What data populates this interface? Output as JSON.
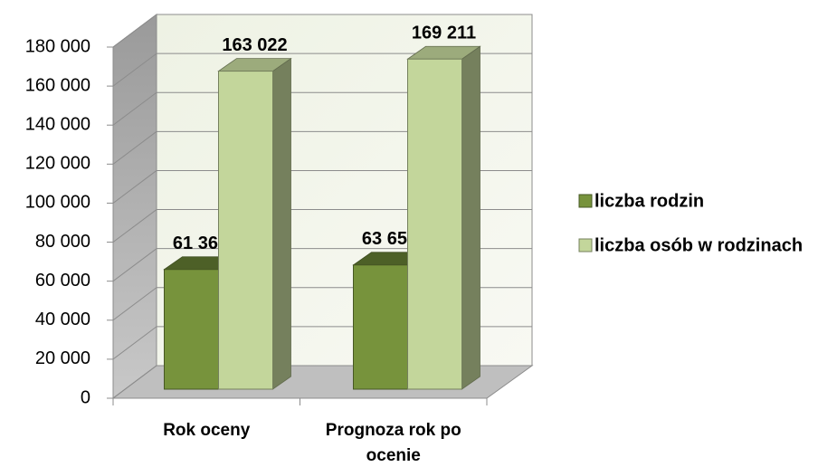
{
  "chart_data": {
    "type": "bar3d",
    "categories": [
      "Rok oceny",
      "Prognoza rok po ocenie"
    ],
    "series": [
      {
        "name": "liczba rodzin",
        "color": "#77933c",
        "values": [
          61364,
          63658
        ],
        "value_labels": [
          "61 364",
          "63 658"
        ]
      },
      {
        "name": "liczba osób w rodzinach",
        "color": "#c3d69b",
        "values": [
          163022,
          169211
        ],
        "value_labels": [
          "163 022",
          "169 211"
        ]
      }
    ],
    "ylim": [
      0,
      180000
    ],
    "yticks": [
      0,
      {
        "value": 20000,
        "label": "20 000"
      },
      {
        "value": 40000,
        "label": "40 000"
      },
      {
        "value": 60000,
        "label": "60 000"
      },
      {
        "value": 80000,
        "label": "80 000"
      },
      {
        "value": 100000,
        "label": "100 000"
      },
      {
        "value": 120000,
        "label": "120 000"
      },
      {
        "value": 140000,
        "label": "140 000"
      },
      {
        "value": 160000,
        "label": "160 000"
      },
      {
        "value": 180000,
        "label": "180 000"
      }
    ],
    "grid": true,
    "legend": "right"
  }
}
